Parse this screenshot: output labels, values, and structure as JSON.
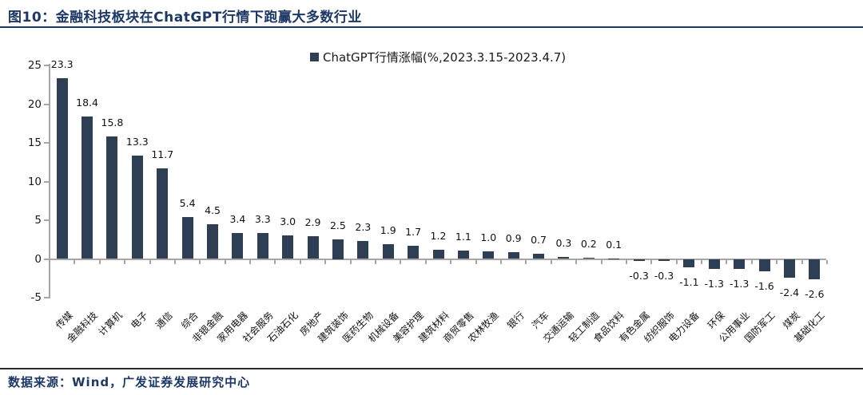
{
  "figure": {
    "title": "图10：金融科技板块在ChatGPT行情下跑赢大多数行业",
    "source": "数据来源：Wind，广发证券发展研究中心"
  },
  "colors": {
    "accent_navy": "#1d3865",
    "bar_fill": "#2e3f55",
    "axis_gray": "#a6a6a6",
    "label_black": "#111111"
  },
  "chart_data": {
    "type": "bar",
    "title": "图10：金融科技板块在ChatGPT行情下跑赢大多数行业",
    "legend": "ChatGPT行情涨幅(%,2023.3.15-2023.4.7)",
    "legend_position": "top-center",
    "grid": false,
    "ylim": [
      -5,
      25
    ],
    "yticks": [
      25,
      20,
      15,
      10,
      5,
      0,
      -5
    ],
    "xlabel": "",
    "ylabel": "",
    "categories": [
      "传媒",
      "金融科技",
      "计算机",
      "电子",
      "通信",
      "综合",
      "非银金融",
      "家用电器",
      "社会服务",
      "石油石化",
      "房地产",
      "建筑装饰",
      "医药生物",
      "机械设备",
      "美容护理",
      "建筑材料",
      "商贸零售",
      "农林牧渔",
      "银行",
      "汽车",
      "交通运输",
      "轻工制造",
      "食品饮料",
      "有色金属",
      "纺织服饰",
      "电力设备",
      "环保",
      "公用事业",
      "国防军工",
      "煤炭",
      "基础化工"
    ],
    "values": [
      23.3,
      18.4,
      15.8,
      13.3,
      11.7,
      5.4,
      4.5,
      3.4,
      3.3,
      3.0,
      2.9,
      2.5,
      2.3,
      1.9,
      1.7,
      1.2,
      1.1,
      1.0,
      0.9,
      0.7,
      0.3,
      0.2,
      0.1,
      -0.3,
      -0.3,
      -1.1,
      -1.3,
      -1.3,
      -1.6,
      -2.4,
      -2.6
    ]
  }
}
